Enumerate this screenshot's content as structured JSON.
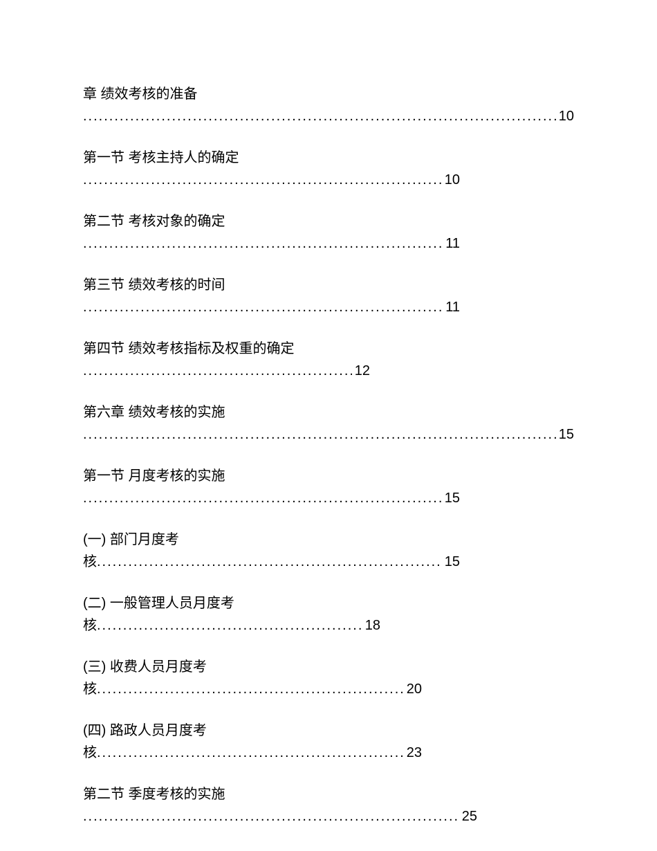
{
  "text_color": "#000000",
  "background_color": "#ffffff",
  "font_size": 20,
  "entries": [
    {
      "title": "章 绩效考核的准备",
      "page": "10",
      "leader_width": "full",
      "inline_prefix": ""
    },
    {
      "title": "第一节  考核主持人的确定",
      "page": "10",
      "leader_width": "medium",
      "inline_prefix": ""
    },
    {
      "title": "第二节  考核对象的确定",
      "page": "11",
      "leader_width": "medium",
      "inline_prefix": ""
    },
    {
      "title": "第三节  绩效考核的时间",
      "page": "11",
      "leader_width": "medium",
      "inline_prefix": ""
    },
    {
      "title": "第四节  绩效考核指标及权重的确定",
      "page": "12",
      "leader_width": "short",
      "inline_prefix": ""
    },
    {
      "title": "第六章 绩效考核的实施",
      "page": "15",
      "leader_width": "full",
      "inline_prefix": ""
    },
    {
      "title": "第一节 月度考核的实施",
      "page": "15",
      "leader_width": "medium",
      "inline_prefix": ""
    },
    {
      "title": "(一) 部门月度考",
      "page": "15",
      "leader_width": "medium",
      "inline_prefix": "核"
    },
    {
      "title": "(二) 一般管理人员月度考",
      "page": "18",
      "leader_width": "short2",
      "inline_prefix": "核"
    },
    {
      "title": "(三) 收费人员月度考",
      "page": "20",
      "leader_width": "short3",
      "inline_prefix": "核"
    },
    {
      "title": "(四) 路政人员月度考",
      "page": "23",
      "leader_width": "short3",
      "inline_prefix": "核"
    },
    {
      "title": "第二节 季度考核的实施",
      "page": "25",
      "leader_width": "medium2",
      "inline_prefix": ""
    }
  ],
  "leader_widths": {
    "full": 710,
    "medium": 545,
    "medium2": 570,
    "short": 415,
    "short2": 430,
    "short3": 490
  }
}
